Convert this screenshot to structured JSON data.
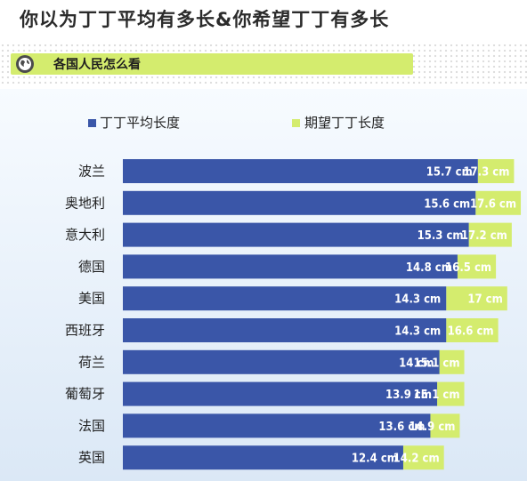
{
  "header": {
    "title": "你以为丁丁平均有多长&你希望丁丁有多长",
    "subtitle": "各国人民怎么看",
    "globe_icon": "globe-icon"
  },
  "colors": {
    "average": "#3a56a8",
    "desired": "#d4ec6e",
    "subbar": "#d4ec6e"
  },
  "chart_data": {
    "type": "bar",
    "orientation": "horizontal",
    "stacked_overlay": true,
    "unit": "cm",
    "legend": [
      "丁丁平均长度",
      "期望丁丁长度"
    ],
    "legend_position": "top",
    "categories": [
      "波兰",
      "奥地利",
      "意大利",
      "德国",
      "美国",
      "西班牙",
      "荷兰",
      "葡萄牙",
      "法国",
      "英国"
    ],
    "series": [
      {
        "name": "丁丁平均长度",
        "values": [
          15.7,
          15.6,
          15.3,
          14.8,
          14.3,
          14.3,
          14,
          13.9,
          13.6,
          12.4
        ],
        "labels": [
          "15.7 cm",
          "15.6 cm",
          "15.3 cm",
          "14.8 cm",
          "14.3 cm",
          "14.3 cm",
          "14 cm",
          "13.9 cm",
          "13.6 cm",
          "12.4 cm"
        ]
      },
      {
        "name": "期望丁丁长度",
        "values": [
          17.3,
          17.6,
          17.2,
          16.5,
          17,
          16.6,
          15.1,
          15.1,
          14.9,
          14.2
        ],
        "labels": [
          "17.3 cm",
          "17.6 cm",
          "17.2 cm",
          "16.5 cm",
          "17 cm",
          "16.6 cm",
          "15.1 cm",
          "15.1 cm",
          "14.9 cm",
          "14.2 cm"
        ]
      }
    ],
    "grid": false
  }
}
